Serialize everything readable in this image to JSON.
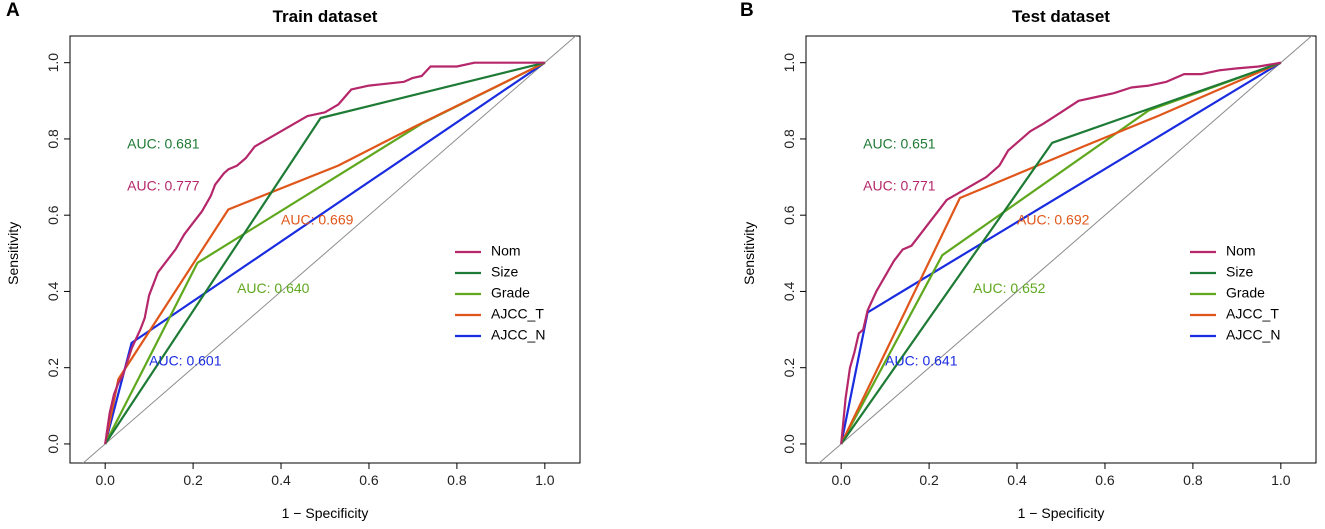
{
  "colors": {
    "Nom": "#B5276A",
    "Size": "#1E7B35",
    "Grade": "#5FA81E",
    "AJCC_T": "#E0561A",
    "AJCC_N": "#1A2CE0",
    "diagonal": "#8C8C8C"
  },
  "chart_data": [
    {
      "panel": "A",
      "type": "line",
      "title": "Train dataset",
      "xlabel": "1 − Specificity",
      "ylabel": "Sensitivity",
      "xlim": [
        -0.08,
        1.08
      ],
      "ylim": [
        -0.05,
        1.07
      ],
      "xticks": [
        "0.0",
        "0.2",
        "0.4",
        "0.6",
        "0.8",
        "1.0"
      ],
      "yticks": [
        "0.0",
        "0.2",
        "0.4",
        "0.6",
        "0.8",
        "1.0"
      ],
      "diagonal": true,
      "legend": [
        "Nom",
        "Size",
        "Grade",
        "AJCC_T",
        "AJCC_N"
      ],
      "series": [
        {
          "name": "AJCC_N",
          "auc": "AUC: 0.601",
          "auc_at": [
            0.1,
            0.215
          ],
          "x": [
            0,
            0.06,
            1
          ],
          "y": [
            0,
            0.265,
            1
          ]
        },
        {
          "name": "Grade",
          "auc": "AUC: 0.640",
          "auc_at": [
            0.3,
            0.405
          ],
          "x": [
            0,
            0.21,
            0.72,
            1
          ],
          "y": [
            0,
            0.475,
            0.84,
            1
          ]
        },
        {
          "name": "AJCC_T",
          "auc": "AUC: 0.669",
          "auc_at": [
            0.4,
            0.585
          ],
          "x": [
            0,
            0.03,
            0.28,
            0.53,
            0.7,
            1
          ],
          "y": [
            0,
            0.17,
            0.615,
            0.73,
            0.83,
            1
          ]
        },
        {
          "name": "Size",
          "auc": "AUC: 0.681",
          "auc_at": [
            0.05,
            0.785
          ],
          "x": [
            0,
            0.49,
            1
          ],
          "y": [
            0,
            0.855,
            1
          ]
        },
        {
          "name": "Nom",
          "auc": "AUC: 0.777",
          "auc_at": [
            0.05,
            0.675
          ],
          "x": [
            0,
            0.01,
            0.02,
            0.03,
            0.04,
            0.06,
            0.08,
            0.09,
            0.1,
            0.12,
            0.14,
            0.16,
            0.18,
            0.2,
            0.22,
            0.24,
            0.25,
            0.27,
            0.28,
            0.3,
            0.32,
            0.34,
            0.37,
            0.4,
            0.43,
            0.46,
            0.5,
            0.53,
            0.56,
            0.6,
            0.64,
            0.68,
            0.7,
            0.72,
            0.74,
            0.76,
            0.8,
            0.84,
            0.9,
            1.0
          ],
          "y": [
            0,
            0.08,
            0.13,
            0.16,
            0.18,
            0.25,
            0.3,
            0.33,
            0.39,
            0.45,
            0.48,
            0.51,
            0.55,
            0.58,
            0.61,
            0.65,
            0.68,
            0.71,
            0.72,
            0.73,
            0.75,
            0.78,
            0.8,
            0.82,
            0.84,
            0.86,
            0.87,
            0.89,
            0.93,
            0.94,
            0.945,
            0.95,
            0.96,
            0.965,
            0.99,
            0.99,
            0.99,
            1.0,
            1.0,
            1.0
          ]
        }
      ]
    },
    {
      "panel": "B",
      "type": "line",
      "title": "Test dataset",
      "xlabel": "1 − Specificity",
      "ylabel": "Sensitivity",
      "xlim": [
        -0.08,
        1.08
      ],
      "ylim": [
        -0.05,
        1.07
      ],
      "xticks": [
        "0.0",
        "0.2",
        "0.4",
        "0.6",
        "0.8",
        "1.0"
      ],
      "yticks": [
        "0.0",
        "0.2",
        "0.4",
        "0.6",
        "0.8",
        "1.0"
      ],
      "diagonal": true,
      "legend": [
        "Nom",
        "Size",
        "Grade",
        "AJCC_T",
        "AJCC_N"
      ],
      "series": [
        {
          "name": "AJCC_N",
          "auc": "AUC: 0.641",
          "auc_at": [
            0.1,
            0.215
          ],
          "x": [
            0,
            0.06,
            1
          ],
          "y": [
            0,
            0.345,
            1
          ]
        },
        {
          "name": "Grade",
          "auc": "AUC: 0.652",
          "auc_at": [
            0.3,
            0.405
          ],
          "x": [
            0,
            0.23,
            0.7,
            1
          ],
          "y": [
            0,
            0.495,
            0.875,
            1
          ]
        },
        {
          "name": "AJCC_T",
          "auc": "AUC: 0.692",
          "auc_at": [
            0.4,
            0.585
          ],
          "x": [
            0,
            0.27,
            0.55,
            0.72,
            1
          ],
          "y": [
            0,
            0.645,
            0.78,
            0.86,
            1
          ]
        },
        {
          "name": "Size",
          "auc": "AUC: 0.651",
          "auc_at": [
            0.05,
            0.785
          ],
          "x": [
            0,
            0.48,
            1
          ],
          "y": [
            0,
            0.79,
            1
          ]
        },
        {
          "name": "Nom",
          "auc": "AUC: 0.771",
          "auc_at": [
            0.05,
            0.675
          ],
          "x": [
            0,
            0.01,
            0.02,
            0.03,
            0.04,
            0.05,
            0.06,
            0.08,
            0.1,
            0.12,
            0.14,
            0.16,
            0.18,
            0.2,
            0.22,
            0.24,
            0.27,
            0.3,
            0.33,
            0.36,
            0.38,
            0.4,
            0.43,
            0.46,
            0.5,
            0.54,
            0.58,
            0.62,
            0.66,
            0.7,
            0.74,
            0.78,
            0.82,
            0.86,
            0.9,
            0.95,
            1.0
          ],
          "y": [
            0,
            0.12,
            0.2,
            0.24,
            0.29,
            0.3,
            0.35,
            0.4,
            0.44,
            0.48,
            0.51,
            0.52,
            0.55,
            0.58,
            0.61,
            0.64,
            0.66,
            0.68,
            0.7,
            0.73,
            0.77,
            0.79,
            0.82,
            0.84,
            0.87,
            0.9,
            0.91,
            0.92,
            0.935,
            0.94,
            0.95,
            0.97,
            0.97,
            0.98,
            0.985,
            0.99,
            1.0
          ]
        }
      ]
    }
  ]
}
